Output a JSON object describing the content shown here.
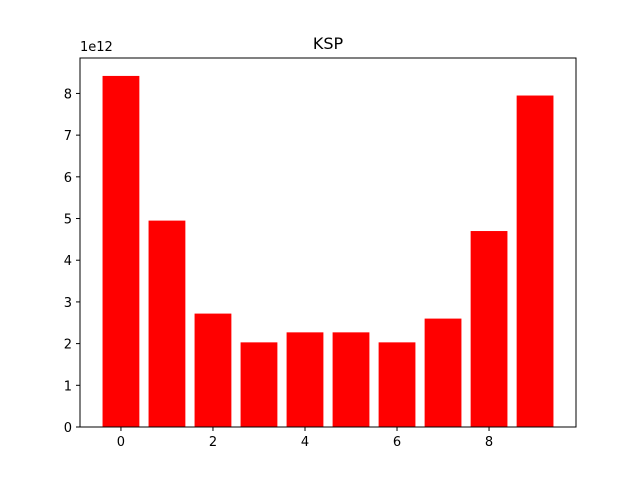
{
  "chart_data": {
    "type": "bar",
    "title": "KSP",
    "xlabel": "",
    "ylabel": "",
    "y_offset_label": "1e12",
    "y_multiplier": 1000000000000.0,
    "x": [
      0,
      1,
      2,
      3,
      4,
      5,
      6,
      7,
      8,
      9
    ],
    "values": [
      8420000000000.0,
      4950000000000.0,
      2720000000000.0,
      2030000000000.0,
      2270000000000.0,
      2270000000000.0,
      2030000000000.0,
      2600000000000.0,
      4700000000000.0,
      7950000000000.0
    ],
    "bar_width": 0.8,
    "bar_color": "#ff0000",
    "xlim": [
      -0.89,
      9.89
    ],
    "ylim": [
      0,
      8850000000000.0
    ],
    "x_ticks": [
      0,
      2,
      4,
      6,
      8
    ],
    "y_ticks": [
      0,
      1,
      2,
      3,
      4,
      5,
      6,
      7,
      8
    ],
    "grid": false,
    "legend": "none"
  }
}
